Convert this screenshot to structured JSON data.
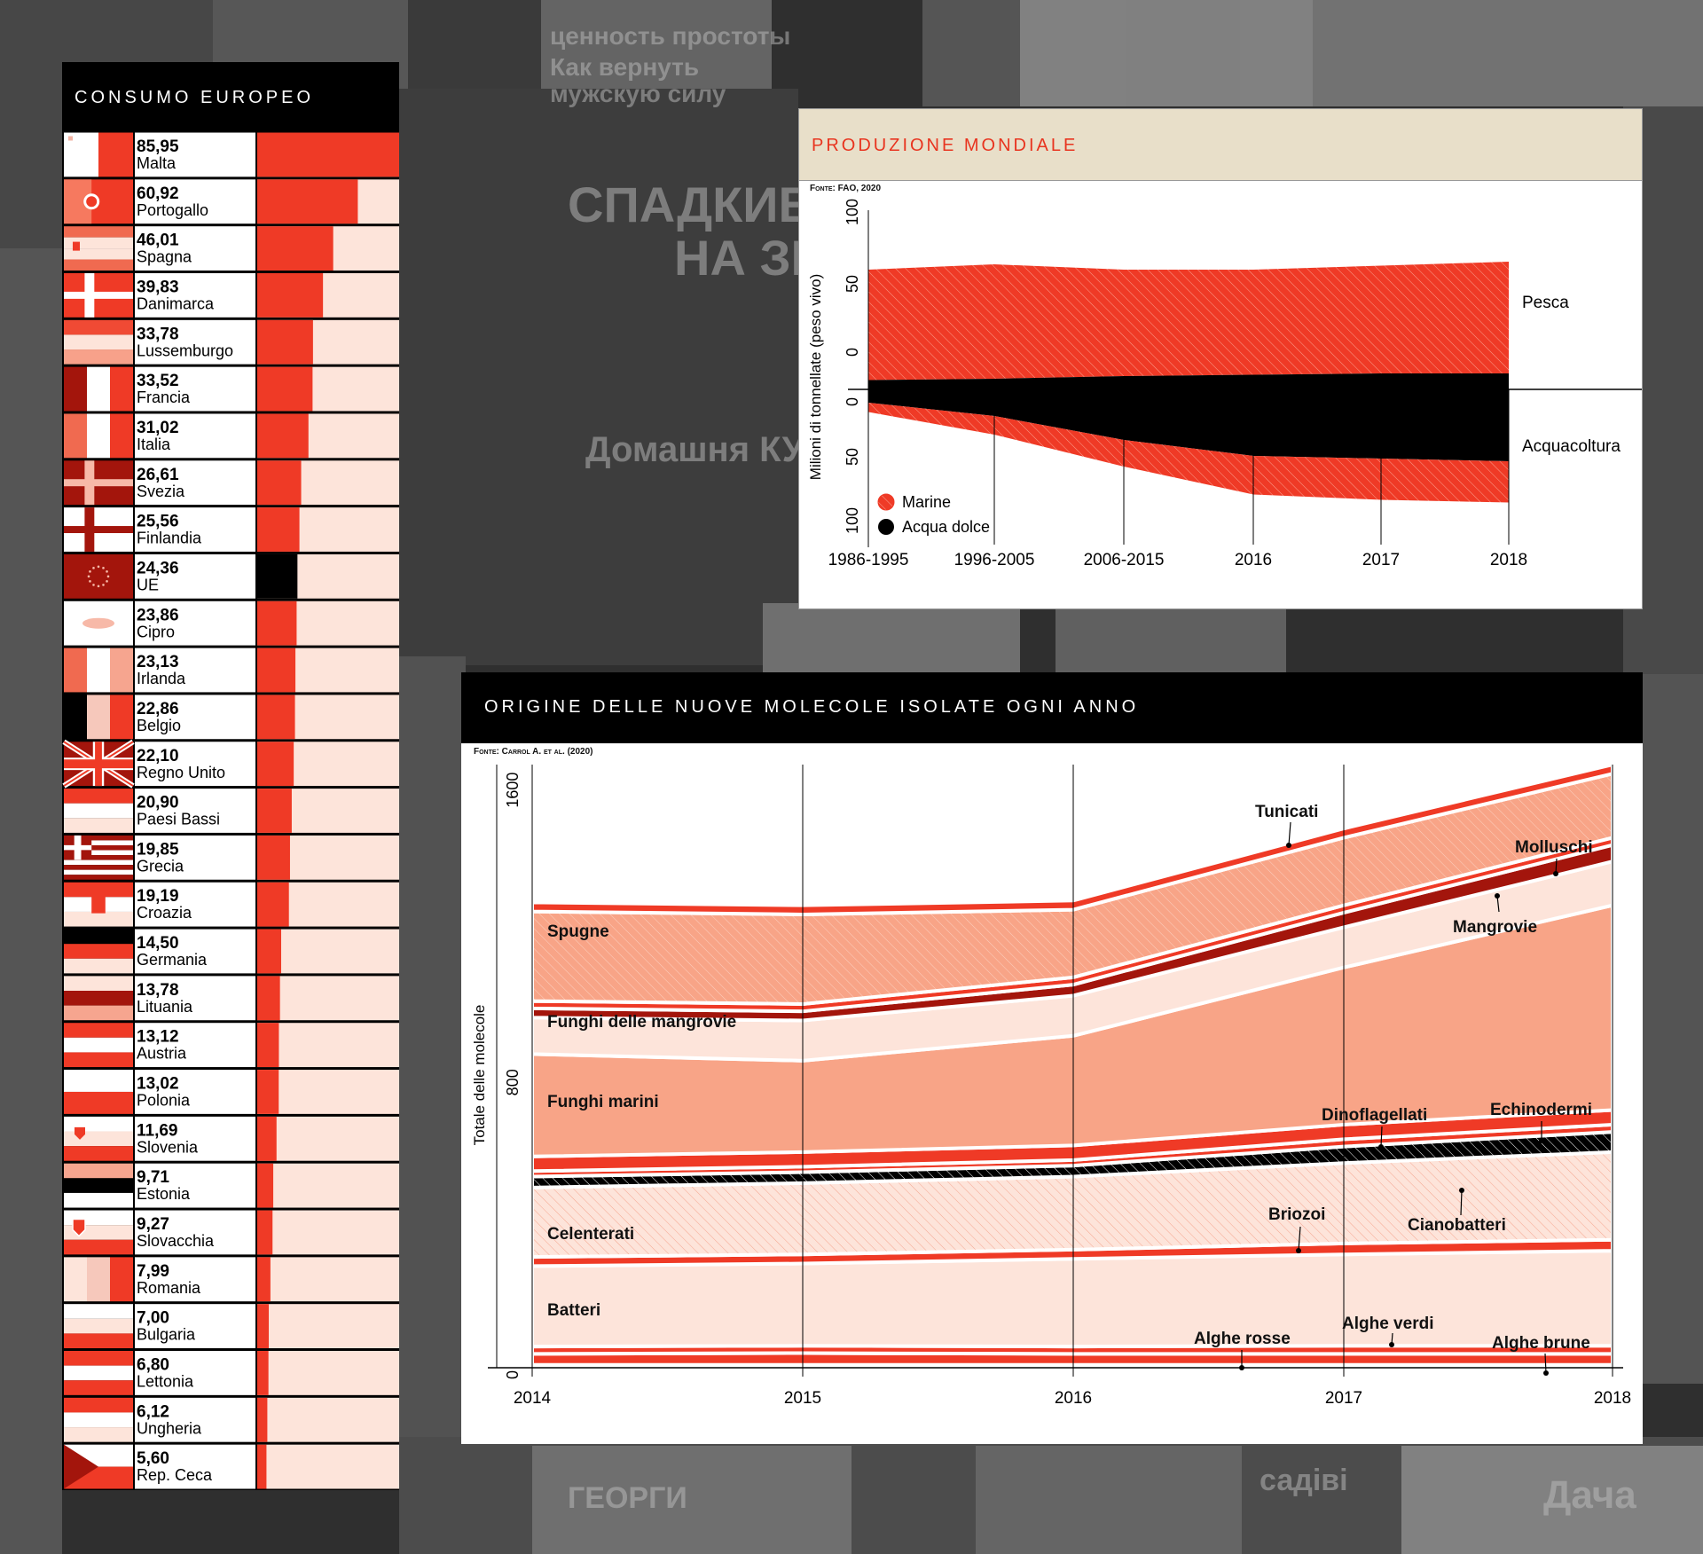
{
  "consumo": {
    "title": "CONSUMO EUROPEO",
    "max_value": 85.95,
    "rows": [
      {
        "value": "85,95",
        "num": 85.95,
        "country": "Malta",
        "flag": "malta"
      },
      {
        "value": "60,92",
        "num": 60.92,
        "country": "Portogallo",
        "flag": "portugal"
      },
      {
        "value": "46,01",
        "num": 46.01,
        "country": "Spagna",
        "flag": "spain"
      },
      {
        "value": "39,83",
        "num": 39.83,
        "country": "Danimarca",
        "flag": "denmark"
      },
      {
        "value": "33,78",
        "num": 33.78,
        "country": "Lussemburgo",
        "flag": "luxembourg"
      },
      {
        "value": "33,52",
        "num": 33.52,
        "country": "Francia",
        "flag": "france"
      },
      {
        "value": "31,02",
        "num": 31.02,
        "country": "Italia",
        "flag": "italy"
      },
      {
        "value": "26,61",
        "num": 26.61,
        "country": "Svezia",
        "flag": "sweden"
      },
      {
        "value": "25,56",
        "num": 25.56,
        "country": "Finlandia",
        "flag": "finland"
      },
      {
        "value": "24,36",
        "num": 24.36,
        "country": "UE",
        "flag": "eu",
        "highlight": true
      },
      {
        "value": "23,86",
        "num": 23.86,
        "country": "Cipro",
        "flag": "cyprus"
      },
      {
        "value": "23,13",
        "num": 23.13,
        "country": "Irlanda",
        "flag": "ireland"
      },
      {
        "value": "22,86",
        "num": 22.86,
        "country": "Belgio",
        "flag": "belgium"
      },
      {
        "value": "22,10",
        "num": 22.1,
        "country": "Regno Unito",
        "flag": "uk"
      },
      {
        "value": "20,90",
        "num": 20.9,
        "country": "Paesi Bassi",
        "flag": "netherlands"
      },
      {
        "value": "19,85",
        "num": 19.85,
        "country": "Grecia",
        "flag": "greece"
      },
      {
        "value": "19,19",
        "num": 19.19,
        "country": "Croazia",
        "flag": "croatia"
      },
      {
        "value": "14,50",
        "num": 14.5,
        "country": "Germania",
        "flag": "germany"
      },
      {
        "value": "13,78",
        "num": 13.78,
        "country": "Lituania",
        "flag": "lithuania"
      },
      {
        "value": "13,12",
        "num": 13.12,
        "country": "Austria",
        "flag": "austria"
      },
      {
        "value": "13,02",
        "num": 13.02,
        "country": "Polonia",
        "flag": "poland"
      },
      {
        "value": "11,69",
        "num": 11.69,
        "country": "Slovenia",
        "flag": "slovenia"
      },
      {
        "value": "9,71",
        "num": 9.71,
        "country": "Estonia",
        "flag": "estonia"
      },
      {
        "value": "9,27",
        "num": 9.27,
        "country": "Slovacchia",
        "flag": "slovakia"
      },
      {
        "value": "7,99",
        "num": 7.99,
        "country": "Romania",
        "flag": "romania"
      },
      {
        "value": "7,00",
        "num": 7.0,
        "country": "Bulgaria",
        "flag": "bulgaria"
      },
      {
        "value": "6,80",
        "num": 6.8,
        "country": "Lettonia",
        "flag": "latvia"
      },
      {
        "value": "6,12",
        "num": 6.12,
        "country": "Ungheria",
        "flag": "hungary"
      },
      {
        "value": "5,60",
        "num": 5.6,
        "country": "Rep. Ceca",
        "flag": "czech"
      }
    ]
  },
  "produzione": {
    "title": "PRODUZIONE MONDIALE",
    "source": "Fonte: FAO, 2020",
    "ylabel": "Milioni di tonnellate (peso vivo)",
    "ticks_top": [
      "100",
      "50",
      "0"
    ],
    "ticks_bottom": [
      "0",
      "50",
      "100"
    ],
    "categories": [
      "1986-1995",
      "1996-2005",
      "2006-2015",
      "2016",
      "2017",
      "2018"
    ],
    "label_pesca": "Pesca",
    "label_acqua": "Acquacoltura",
    "legend_marine": "Marine",
    "legend_dolce": "Acqua dolce"
  },
  "molecole": {
    "title": "ORIGINE DELLE NUOVE MOLECOLE ISOLATE OGNI ANNO",
    "source": "Fonte: Carrol A. et al. (2020)",
    "ylabel": "Totale delle molecole",
    "yticks": [
      "1600",
      "800",
      "0"
    ],
    "xticks": [
      "2014",
      "2015",
      "2016",
      "2017",
      "2018"
    ],
    "labels": {
      "spugne": "Spugne",
      "funghi_mangrovie": "Funghi delle mangrovie",
      "funghi_marini": "Funghi marini",
      "celenterati": "Celenterati",
      "batteri": "Batteri",
      "tunicati": "Tunicati",
      "molluschi": "Molluschi",
      "mangrovie": "Mangrovie",
      "dinoflagellati": "Dinoflagellati",
      "echinodermi": "Echinodermi",
      "briozoi": "Briozoi",
      "cianobatteri": "Cianobatteri",
      "alghe_rosse": "Alghe rosse",
      "alghe_verdi": "Alghe verdi",
      "alghe_brune": "Alghe brune"
    }
  },
  "chart_data": [
    {
      "type": "bar",
      "title": "CONSUMO EUROPEO",
      "categories": [
        "Malta",
        "Portogallo",
        "Spagna",
        "Danimarca",
        "Lussemburgo",
        "Francia",
        "Italia",
        "Svezia",
        "Finlandia",
        "UE",
        "Cipro",
        "Irlanda",
        "Belgio",
        "Regno Unito",
        "Paesi Bassi",
        "Grecia",
        "Croazia",
        "Germania",
        "Lituania",
        "Austria",
        "Polonia",
        "Slovenia",
        "Estonia",
        "Slovacchia",
        "Romania",
        "Bulgaria",
        "Lettonia",
        "Ungheria",
        "Rep. Ceca"
      ],
      "values": [
        85.95,
        60.92,
        46.01,
        39.83,
        33.78,
        33.52,
        31.02,
        26.61,
        25.56,
        24.36,
        23.86,
        23.13,
        22.86,
        22.1,
        20.9,
        19.85,
        19.19,
        14.5,
        13.78,
        13.12,
        13.02,
        11.69,
        9.71,
        9.27,
        7.99,
        7.0,
        6.8,
        6.12,
        5.6
      ]
    },
    {
      "type": "area",
      "title": "PRODUZIONE MONDIALE",
      "x": [
        "1986-1995",
        "1996-2005",
        "2006-2015",
        "2016",
        "2017",
        "2018"
      ],
      "ylabel": "Milioni di tonnellate (peso vivo)",
      "groups": [
        {
          "name": "Pesca",
          "series": [
            {
              "name": "Marine",
              "values": [
                83,
                86,
                80,
                79,
                81,
                84
              ]
            },
            {
              "name": "Acqua dolce",
              "values": [
                7,
                8,
                10,
                11,
                12,
                12
              ]
            }
          ]
        },
        {
          "name": "Acquacoltura",
          "series": [
            {
              "name": "Acqua dolce",
              "values": [
                10,
                20,
                38,
                50,
                52,
                54
              ]
            },
            {
              "name": "Marine",
              "values": [
                7,
                14,
                20,
                29,
                31,
                31
              ]
            }
          ]
        }
      ],
      "ylim": [
        -100,
        100
      ]
    },
    {
      "type": "area",
      "title": "ORIGINE DELLE NUOVE MOLECOLE ISOLATE OGNI ANNO",
      "ylabel": "Totale delle molecole",
      "x": [
        2014,
        2015,
        2016,
        2017,
        2018
      ],
      "series": [
        {
          "name": "Alghe brune",
          "values": [
            8,
            8,
            8,
            8,
            8
          ]
        },
        {
          "name": "Alghe rosse",
          "values": [
            30,
            32,
            30,
            30,
            30
          ]
        },
        {
          "name": "Alghe verdi",
          "values": [
            20,
            20,
            20,
            22,
            22
          ]
        },
        {
          "name": "Batteri",
          "values": [
            220,
            225,
            240,
            250,
            260
          ]
        },
        {
          "name": "Briozoi",
          "values": [
            25,
            25,
            25,
            30,
            30
          ]
        },
        {
          "name": "Celenterati",
          "values": [
            190,
            195,
            200,
            220,
            240
          ]
        },
        {
          "name": "Cianobatteri",
          "values": [
            30,
            30,
            30,
            45,
            55
          ]
        },
        {
          "name": "Dinoflagellati",
          "values": [
            15,
            15,
            15,
            20,
            20
          ]
        },
        {
          "name": "Echinodermi",
          "values": [
            40,
            40,
            40,
            40,
            40
          ]
        },
        {
          "name": "Funghi marini",
          "values": [
            280,
            250,
            300,
            430,
            560
          ]
        },
        {
          "name": "Funghi delle mangrovie",
          "values": [
            100,
            110,
            110,
            110,
            120
          ]
        },
        {
          "name": "Mangrovie",
          "values": [
            25,
            25,
            30,
            40,
            45
          ]
        },
        {
          "name": "Molluschi",
          "values": [
            20,
            20,
            20,
            20,
            20
          ]
        },
        {
          "name": "Spugne",
          "values": [
            245,
            245,
            185,
            185,
            175
          ]
        },
        {
          "name": "Tunicati",
          "values": [
            25,
            25,
            25,
            25,
            25
          ]
        }
      ],
      "ylim": [
        0,
        1650
      ]
    }
  ]
}
